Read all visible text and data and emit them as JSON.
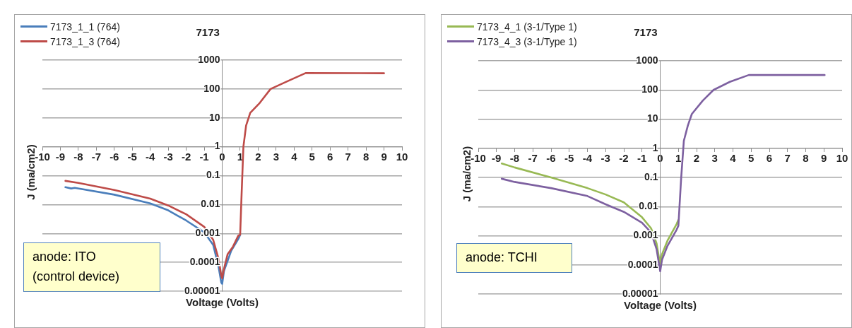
{
  "chart_data": [
    {
      "type": "line",
      "title": "7173",
      "xlabel": "Voltage (Volts)",
      "ylabel": "J (ma/cm2)",
      "log": "y",
      "grid": "y",
      "legend": "top left",
      "marker": "none",
      "xlim": [
        -10,
        10
      ],
      "xticks": [
        -10,
        -9,
        -8,
        -7,
        -6,
        -5,
        -4,
        -3,
        -2,
        -1,
        0,
        1,
        2,
        3,
        4,
        5,
        6,
        7,
        8,
        9,
        10
      ],
      "ylim": [
        1e-05,
        1000
      ],
      "yticks": [
        {
          "value": 1e-05,
          "label": "0.00001"
        },
        0.0001,
        0.001,
        0.01,
        0.1,
        1,
        10,
        100,
        1000
      ],
      "annotations": [
        "anode: ITO (control device)"
      ],
      "series": [
        {
          "name": "7173_1_1 (764)",
          "color": "#4a7ebb",
          "x": [
            -8.72,
            -8.4,
            -8.2,
            -6,
            -4,
            -3,
            -2,
            -1,
            -0.5,
            -0.2,
            -0.05,
            0,
            0.1,
            0.5,
            0.9,
            1.0
          ],
          "values": [
            0.04,
            0.036,
            0.038,
            0.022,
            0.011,
            0.0063,
            0.0028,
            0.0011,
            0.0004,
            7e-05,
            2e-05,
            1.8e-05,
            5e-05,
            0.00025,
            0.00065,
            0.0009
          ]
        },
        {
          "name": "7173_1_3 (764)",
          "color": "#be4b48",
          "x": [
            -8.72,
            -8,
            -6,
            -4,
            -3,
            -2,
            -1,
            -0.5,
            -0.2,
            -0.05,
            0,
            0.1,
            0.3,
            0.6,
            0.9,
            1.0,
            1.08,
            1.18,
            1.33,
            1.56,
            2.09,
            2.69,
            3.59,
            4.64,
            9.0
          ],
          "values": [
            0.066,
            0.056,
            0.032,
            0.016,
            0.0093,
            0.0046,
            0.0017,
            0.0006,
            0.00013,
            3.5e-05,
            2.8e-05,
            6e-05,
            0.00019,
            0.00035,
            0.00085,
            0.0009,
            0.023,
            1,
            5.4,
            15,
            33,
            100,
            180,
            355,
            350
          ]
        }
      ]
    },
    {
      "type": "line",
      "title": "7173",
      "xlabel": "Voltage (Volts)",
      "ylabel": "J (ma/cm2)",
      "log": "y",
      "grid": "y",
      "legend": "top left",
      "marker": "none",
      "xlim": [
        -10,
        10
      ],
      "xticks": [
        -10,
        -9,
        -8,
        -7,
        -6,
        -5,
        -4,
        -3,
        -2,
        -1,
        0,
        1,
        2,
        3,
        4,
        5,
        6,
        7,
        8,
        9,
        10
      ],
      "ylim": [
        1e-05,
        1000
      ],
      "yticks": [
        {
          "value": 1e-05,
          "label": "0.00001"
        },
        0.0001,
        0.001,
        0.01,
        0.1,
        1,
        10,
        100,
        1000
      ],
      "annotations": [
        "anode: TCHI"
      ],
      "series": [
        {
          "name": "7173_4_1 (3-1/Type 1)",
          "color": "#98b954",
          "x": [
            -8.71,
            -8,
            -6,
            -4,
            -3,
            -2,
            -1,
            -0.5,
            -0.2,
            0,
            0.1,
            0.4,
            0.9,
            1.0
          ],
          "values": [
            0.3,
            0.22,
            0.1,
            0.043,
            0.026,
            0.014,
            0.0043,
            0.0018,
            0.00055,
            0.0001,
            0.00023,
            0.00068,
            0.0025,
            0.0035
          ]
        },
        {
          "name": "7173_4_3 (3-1/Type 1)",
          "color": "#7d60a0",
          "x": [
            -8.71,
            -8,
            -6,
            -4,
            -3,
            -2,
            -1,
            -0.5,
            -0.2,
            0,
            0.1,
            0.4,
            0.9,
            1.0,
            1.15,
            1.3,
            1.52,
            1.74,
            2.34,
            2.93,
            3.83,
            4.87,
            9.04
          ],
          "values": [
            0.09,
            0.07,
            0.043,
            0.023,
            0.012,
            0.0066,
            0.0028,
            0.0013,
            0.00035,
            6e-05,
            0.00015,
            0.00045,
            0.0016,
            0.0022,
            0.09,
            1.8,
            6,
            15,
            43,
            100,
            190,
            325,
            325
          ]
        }
      ]
    }
  ]
}
